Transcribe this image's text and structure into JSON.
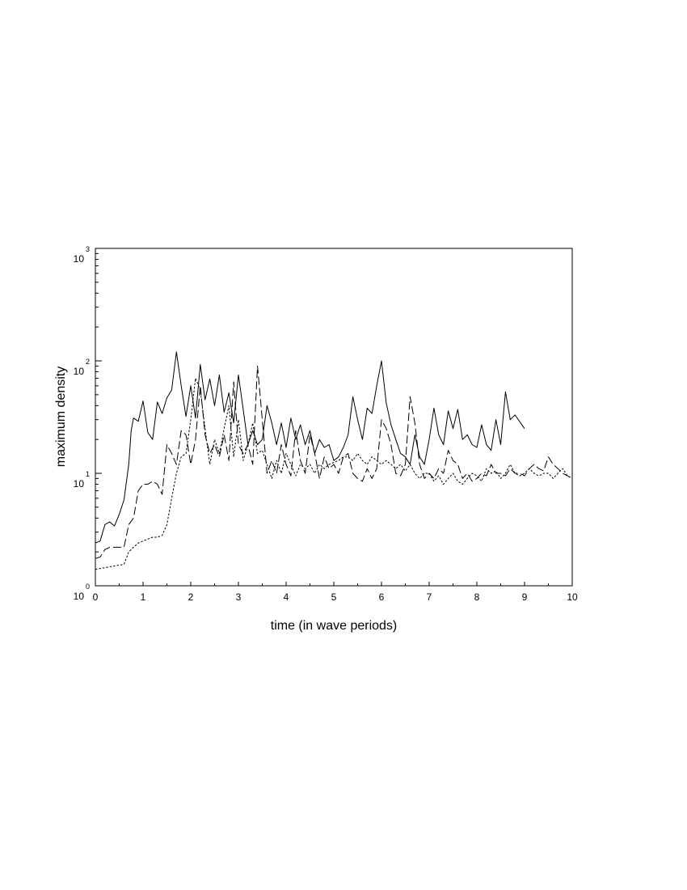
{
  "chart_data": {
    "type": "line",
    "title": "",
    "xlabel": "time (in wave periods)",
    "ylabel": "maximum density",
    "xlim": [
      0,
      10
    ],
    "ylim": [
      1,
      1000
    ],
    "y_scale": "log",
    "x_ticks": [
      0,
      1,
      2,
      3,
      4,
      5,
      6,
      7,
      8,
      9,
      10
    ],
    "y_ticks": [
      {
        "base": "10",
        "exp": "0",
        "value": 1
      },
      {
        "base": "10",
        "exp": "1",
        "value": 10
      },
      {
        "base": "10",
        "exp": "2",
        "value": 100
      },
      {
        "base": "10",
        "exp": "3",
        "value": 1000
      }
    ],
    "grid": false,
    "legend": "none",
    "series": [
      {
        "line_style": "solid",
        "color": "#000000",
        "x": [
          0,
          0.1,
          0.2,
          0.3,
          0.4,
          0.5,
          0.6,
          0.7,
          0.75,
          0.8,
          0.9,
          1.0,
          1.1,
          1.2,
          1.3,
          1.4,
          1.5,
          1.6,
          1.7,
          1.8,
          1.9,
          2.0,
          2.1,
          2.2,
          2.3,
          2.4,
          2.5,
          2.6,
          2.7,
          2.8,
          2.9,
          3.0,
          3.1,
          3.2,
          3.3,
          3.4,
          3.5,
          3.6,
          3.7,
          3.8,
          3.9,
          4.0,
          4.1,
          4.2,
          4.3,
          4.4,
          4.5,
          4.6,
          4.7,
          4.8,
          4.9,
          5.0,
          5.1,
          5.2,
          5.3,
          5.4,
          5.5,
          5.6,
          5.7,
          5.8,
          5.9,
          6.0,
          6.1,
          6.2,
          6.3,
          6.4,
          6.5,
          6.6,
          6.7,
          6.8,
          6.9,
          7.0,
          7.1,
          7.2,
          7.3,
          7.4,
          7.5,
          7.6,
          7.7,
          7.8,
          7.9,
          8.0,
          8.1,
          8.2,
          8.3,
          8.4,
          8.5,
          8.6,
          8.7,
          8.8,
          9.0
        ],
        "y": [
          2.4,
          2.5,
          3.5,
          3.7,
          3.4,
          4.3,
          5.8,
          12,
          24,
          31,
          29,
          44,
          23,
          20,
          43,
          34,
          47,
          55,
          120,
          60,
          32,
          60,
          31,
          93,
          45,
          69,
          40,
          75,
          35,
          52,
          28,
          75,
          37,
          18,
          24,
          18,
          20,
          40,
          28,
          18,
          28,
          17,
          31,
          20,
          27,
          18,
          24,
          15,
          20,
          17,
          18,
          13,
          14,
          17,
          22,
          48,
          30,
          20,
          38,
          34,
          60,
          100,
          42,
          27,
          20,
          15,
          14,
          12,
          22,
          14,
          12,
          20,
          38,
          22,
          18,
          36,
          25,
          37,
          20,
          22,
          18,
          17,
          27,
          18,
          16,
          30,
          18,
          53,
          30,
          33,
          25
        ]
      },
      {
        "line_style": "dashed",
        "color": "#000000",
        "x": [
          0,
          0.1,
          0.2,
          0.3,
          0.4,
          0.5,
          0.6,
          0.7,
          0.8,
          0.9,
          1.0,
          1.1,
          1.2,
          1.3,
          1.4,
          1.5,
          1.6,
          1.7,
          1.8,
          1.9,
          2.0,
          2.1,
          2.2,
          2.3,
          2.4,
          2.5,
          2.6,
          2.7,
          2.8,
          2.9,
          3.0,
          3.1,
          3.2,
          3.3,
          3.4,
          3.5,
          3.6,
          3.7,
          3.8,
          3.9,
          4.0,
          4.1,
          4.2,
          4.3,
          4.4,
          4.5,
          4.6,
          4.7,
          4.8,
          4.9,
          5.0,
          5.1,
          5.2,
          5.3,
          5.4,
          5.5,
          5.6,
          5.7,
          5.8,
          5.9,
          6.0,
          6.1,
          6.2,
          6.3,
          6.4,
          6.5,
          6.6,
          6.7,
          6.8,
          6.9,
          7.0,
          7.1,
          7.2,
          7.3,
          7.4,
          7.5,
          7.6,
          7.7,
          7.8,
          7.9,
          8.0,
          8.1,
          8.2,
          8.3,
          8.4,
          8.5,
          8.6,
          8.7,
          8.8,
          8.9,
          9.0,
          9.1,
          9.2,
          9.3,
          9.4,
          9.5,
          9.6,
          9.7,
          9.8,
          9.9,
          10.0
        ],
        "y": [
          1.75,
          1.8,
          2.1,
          2.2,
          2.2,
          2.2,
          2.2,
          3.5,
          4,
          7,
          8,
          8,
          8.5,
          8,
          6.5,
          18,
          15,
          12,
          24,
          22,
          12,
          20,
          60,
          22,
          15,
          18,
          14,
          22,
          13,
          65,
          18,
          15,
          18,
          12,
          90,
          30,
          10,
          13,
          10,
          18,
          12,
          9.5,
          24,
          13,
          10,
          22,
          15,
          9,
          14,
          11,
          12,
          10,
          14,
          15,
          10,
          9,
          8.5,
          11,
          9,
          11,
          30,
          25,
          18,
          10,
          9.5,
          12,
          48,
          28,
          12,
          9,
          10,
          9,
          11,
          10,
          16,
          13,
          12,
          9,
          10,
          8.5,
          9,
          10,
          9.5,
          12,
          10,
          10,
          9.5,
          11,
          10,
          10,
          9.5,
          11,
          12,
          11,
          10.5,
          14,
          12,
          11,
          10,
          9.5,
          9
        ]
      },
      {
        "line_style": "dotted",
        "color": "#000000",
        "x": [
          0,
          0.2,
          0.4,
          0.6,
          0.7,
          0.8,
          0.9,
          1.0,
          1.1,
          1.2,
          1.3,
          1.4,
          1.5,
          1.6,
          1.7,
          1.8,
          1.9,
          2.0,
          2.1,
          2.2,
          2.3,
          2.4,
          2.5,
          2.6,
          2.7,
          2.8,
          2.9,
          3.0,
          3.1,
          3.2,
          3.3,
          3.4,
          3.5,
          3.6,
          3.7,
          3.8,
          3.9,
          4.0,
          4.1,
          4.2,
          4.3,
          4.4,
          4.5,
          4.6,
          4.7,
          4.8,
          4.9,
          5.0,
          5.1,
          5.2,
          5.3,
          5.4,
          5.5,
          5.6,
          5.7,
          5.8,
          5.9,
          6.0,
          6.1,
          6.2,
          6.3,
          6.4,
          6.5,
          6.6,
          6.7,
          6.8,
          6.9,
          7.0,
          7.1,
          7.2,
          7.3,
          7.4,
          7.5,
          7.6,
          7.7,
          7.8,
          7.9,
          8.0,
          8.1,
          8.2,
          8.3,
          8.4,
          8.5,
          8.6,
          8.7,
          8.8,
          8.9,
          9.0,
          9.1,
          9.2,
          9.3,
          9.4,
          9.5,
          9.6,
          9.7,
          9.8,
          9.9,
          10.0
        ],
        "y": [
          1.4,
          1.45,
          1.5,
          1.55,
          2,
          2.2,
          2.4,
          2.5,
          2.6,
          2.7,
          2.7,
          2.8,
          3.5,
          6,
          10,
          14,
          15,
          30,
          70,
          55,
          25,
          12,
          20,
          15,
          25,
          40,
          14,
          30,
          13,
          18,
          28,
          15,
          16,
          12,
          9,
          13,
          10,
          15,
          12,
          9.5,
          12,
          11,
          12,
          10,
          12,
          11,
          12,
          12.5,
          13,
          14,
          14,
          13,
          15,
          13,
          12,
          14,
          13,
          12,
          13,
          12,
          11,
          12,
          10.5,
          12,
          10,
          9,
          10,
          10,
          8.5,
          9.5,
          8,
          9,
          10,
          8.5,
          8,
          9,
          10,
          9.5,
          8.5,
          11,
          10,
          10.5,
          9,
          10,
          12,
          10,
          9.5,
          10,
          11,
          10,
          9.5,
          10,
          10,
          9,
          10,
          11,
          9.5,
          9
        ]
      }
    ]
  }
}
